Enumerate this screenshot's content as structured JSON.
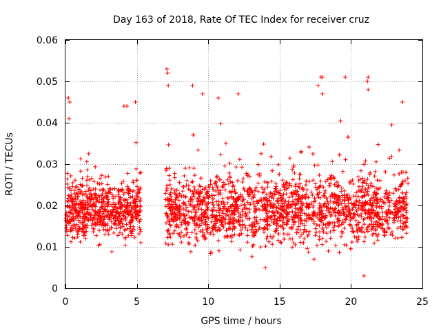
{
  "chart_data": {
    "type": "scatter",
    "title": "Day 163 of 2018, Rate Of TEC Index for receiver cruz",
    "xlabel": "GPS time / hours",
    "ylabel": "ROTI / TECUs",
    "xlim": [
      0,
      25
    ],
    "ylim": [
      0,
      0.06
    ],
    "xticks": [
      0,
      5,
      10,
      15,
      20,
      25
    ],
    "xtick_labels": [
      "0",
      "5",
      "10",
      "15",
      "20",
      "25"
    ],
    "yticks": [
      0,
      0.01,
      0.02,
      0.03,
      0.04,
      0.05,
      0.06
    ],
    "ytick_labels": [
      "0",
      "0.01",
      "0.02",
      "0.03",
      "0.04",
      "0.05",
      "0.06"
    ],
    "grid": true,
    "marker": "+",
    "color": "#ff0000",
    "series": [
      {
        "name": "ROTI",
        "segments": [
          {
            "x_start": 0.0,
            "x_end": 5.3,
            "typical_min": 0.008,
            "typical_max": 0.03,
            "peak": 0.046
          },
          {
            "x_start": 7.0,
            "x_end": 24.0,
            "typical_min": 0.006,
            "typical_max": 0.032,
            "peak": 0.053
          }
        ],
        "gap": [
          5.3,
          7.0
        ],
        "notable_points": [
          {
            "x": 0.2,
            "y": 0.046
          },
          {
            "x": 0.3,
            "y": 0.045
          },
          {
            "x": 0.25,
            "y": 0.041
          },
          {
            "x": 4.1,
            "y": 0.044
          },
          {
            "x": 4.3,
            "y": 0.044
          },
          {
            "x": 4.9,
            "y": 0.045
          },
          {
            "x": 7.1,
            "y": 0.053
          },
          {
            "x": 7.15,
            "y": 0.052
          },
          {
            "x": 7.2,
            "y": 0.049
          },
          {
            "x": 8.9,
            "y": 0.049
          },
          {
            "x": 9.6,
            "y": 0.047
          },
          {
            "x": 10.7,
            "y": 0.046
          },
          {
            "x": 12.1,
            "y": 0.047
          },
          {
            "x": 17.7,
            "y": 0.049
          },
          {
            "x": 17.9,
            "y": 0.051
          },
          {
            "x": 18.0,
            "y": 0.051
          },
          {
            "x": 18.0,
            "y": 0.047
          },
          {
            "x": 19.6,
            "y": 0.051
          },
          {
            "x": 21.2,
            "y": 0.051
          },
          {
            "x": 21.15,
            "y": 0.05
          },
          {
            "x": 21.2,
            "y": 0.048
          },
          {
            "x": 23.6,
            "y": 0.045
          },
          {
            "x": 20.9,
            "y": 0.003
          },
          {
            "x": 14.0,
            "y": 0.005
          }
        ]
      }
    ]
  }
}
